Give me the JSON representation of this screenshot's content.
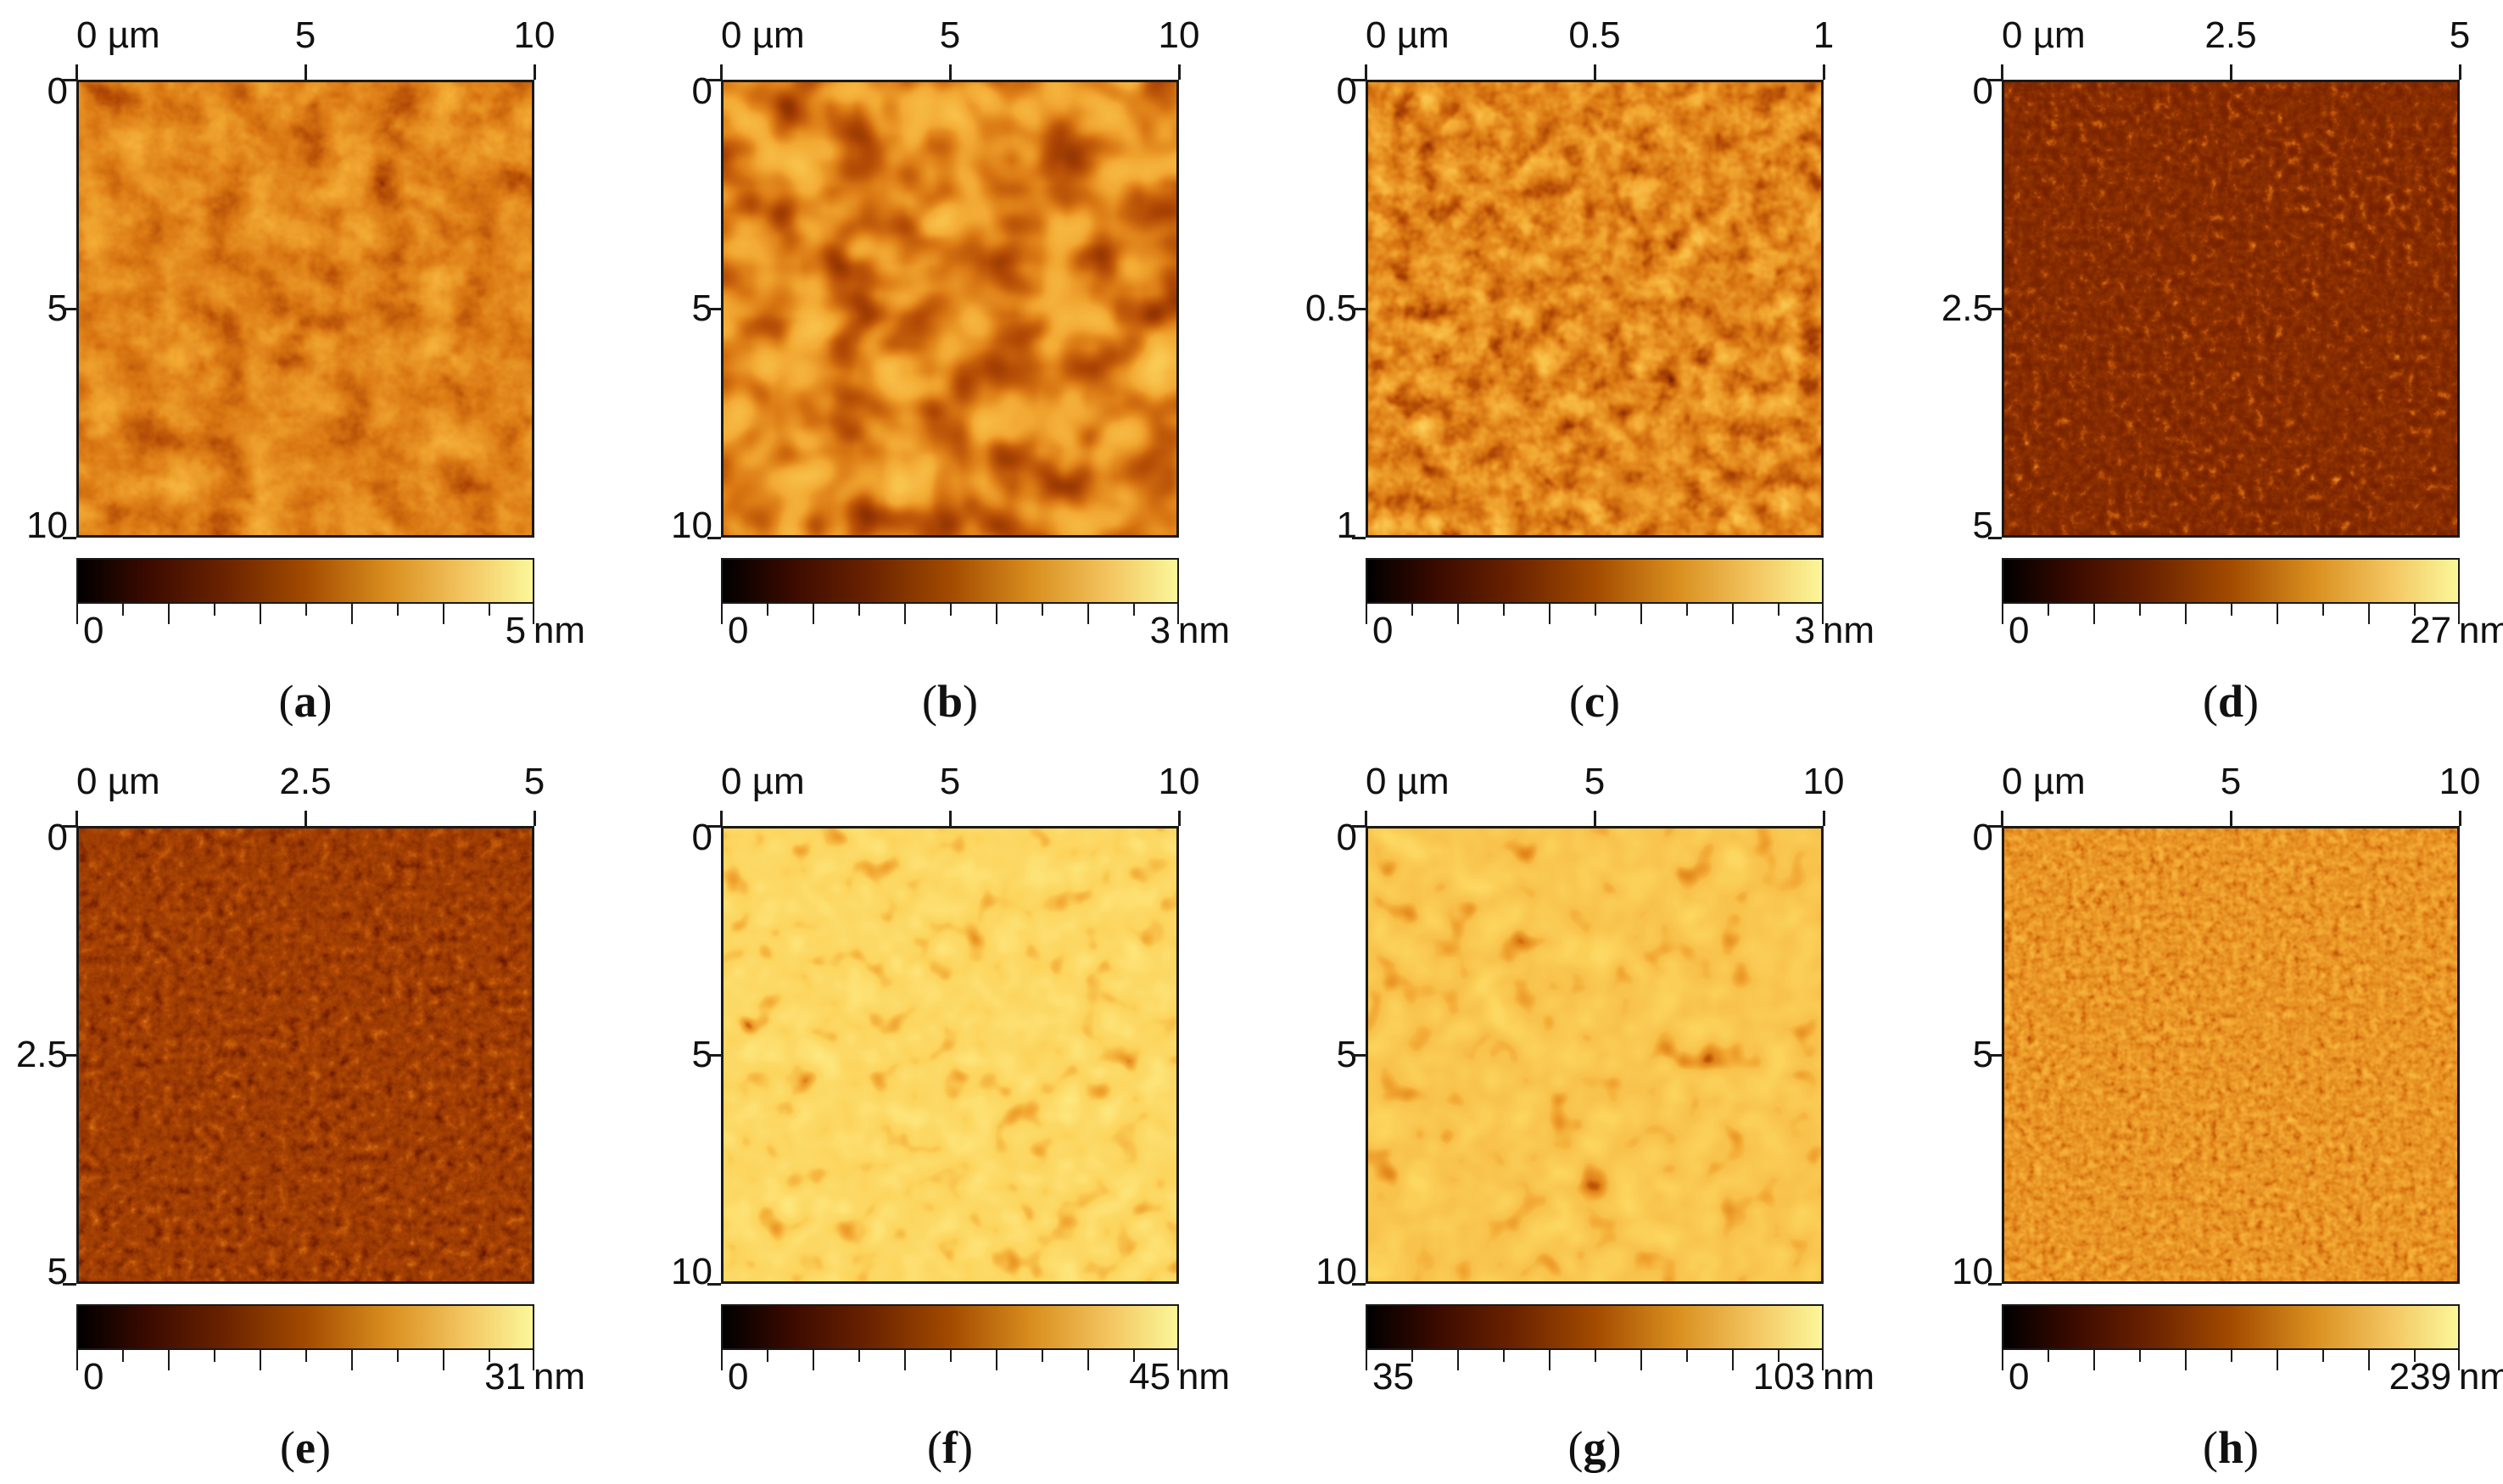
{
  "panels": [
    {
      "id": "a",
      "caption_letter": "a",
      "x_ticks": [
        "0 µm",
        "5",
        "10"
      ],
      "y_ticks": [
        "0",
        "5",
        "10"
      ],
      "scale_max": 10,
      "cbar_min": "0",
      "cbar_max": "5",
      "unit": "nm",
      "texture": {
        "seed": 3,
        "freq": 0.02,
        "octaves": 4,
        "mode": "mottle",
        "base": 0.55,
        "contrast": 0.55
      }
    },
    {
      "id": "b",
      "caption_letter": "b",
      "x_ticks": [
        "0 µm",
        "5",
        "10"
      ],
      "y_ticks": [
        "0",
        "5",
        "10"
      ],
      "scale_max": 10,
      "cbar_min": "0",
      "cbar_max": "3",
      "unit": "nm",
      "texture": {
        "seed": 11,
        "freq": 0.016,
        "octaves": 2,
        "mode": "worm",
        "base": 0.5,
        "contrast": 0.75
      }
    },
    {
      "id": "c",
      "caption_letter": "c",
      "x_ticks": [
        "0 µm",
        "0.5",
        "1"
      ],
      "y_ticks": [
        "0",
        "0.5",
        "1"
      ],
      "scale_max": 1,
      "cbar_min": "0",
      "cbar_max": "3",
      "unit": "nm",
      "texture": {
        "seed": 17,
        "freq": 0.035,
        "octaves": 3,
        "mode": "grain",
        "base": 0.55,
        "contrast": 0.7
      }
    },
    {
      "id": "d",
      "caption_letter": "d",
      "x_ticks": [
        "0 µm",
        "2.5",
        "5"
      ],
      "y_ticks": [
        "0",
        "2.5",
        "5"
      ],
      "scale_max": 5,
      "cbar_min": "0",
      "cbar_max": "27",
      "unit": "nm",
      "texture": {
        "seed": 23,
        "freq": 0.09,
        "octaves": 3,
        "mode": "fine",
        "base": 0.3,
        "contrast": 0.35
      }
    },
    {
      "id": "e",
      "caption_letter": "e",
      "x_ticks": [
        "0 µm",
        "2.5",
        "5"
      ],
      "y_ticks": [
        "0",
        "2.5",
        "5"
      ],
      "scale_max": 5,
      "cbar_min": "0",
      "cbar_max": "31",
      "unit": "nm",
      "texture": {
        "seed": 29,
        "freq": 0.08,
        "octaves": 3,
        "mode": "speckle",
        "base": 0.36,
        "contrast": 0.35
      }
    },
    {
      "id": "f",
      "caption_letter": "f",
      "x_ticks": [
        "0 µm",
        "5",
        "10"
      ],
      "y_ticks": [
        "0",
        "5",
        "10"
      ],
      "scale_max": 10,
      "cbar_min": "0",
      "cbar_max": "45",
      "unit": "nm",
      "texture": {
        "seed": 31,
        "freq": 0.028,
        "octaves": 2,
        "mode": "pores",
        "base": 0.86,
        "contrast": 0.25
      }
    },
    {
      "id": "g",
      "caption_letter": "g",
      "x_ticks": [
        "0 µm",
        "5",
        "10"
      ],
      "y_ticks": [
        "0",
        "5",
        "10"
      ],
      "scale_max": 10,
      "cbar_min": "35",
      "cbar_max": "103",
      "unit": "nm",
      "texture": {
        "seed": 37,
        "freq": 0.024,
        "octaves": 2,
        "mode": "pores",
        "base": 0.8,
        "contrast": 0.32
      }
    },
    {
      "id": "h",
      "caption_letter": "h",
      "x_ticks": [
        "0 µm",
        "5",
        "10"
      ],
      "y_ticks": [
        "0",
        "5",
        "10"
      ],
      "scale_max": 10,
      "cbar_min": "0",
      "cbar_max": "239",
      "unit": "nm",
      "texture": {
        "seed": 41,
        "freq": 0.11,
        "octaves": 2,
        "mode": "grains",
        "base": 0.62,
        "contrast": 0.55
      }
    }
  ]
}
